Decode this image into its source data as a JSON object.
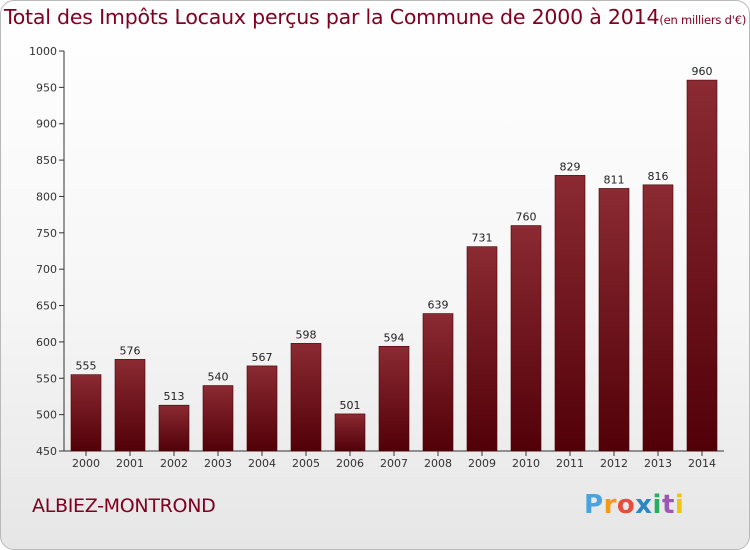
{
  "title": "Total des Impôts Locaux perçus par la Commune de 2000 à 2014",
  "title_unit": "(en milliers d'€)",
  "commune": "ALBIEZ-MONTROND",
  "logo": {
    "letters": [
      "P",
      "r",
      "o",
      "x",
      "i",
      "t",
      "i"
    ],
    "colors": [
      "#4aa3df",
      "#f39c12",
      "#e74c3c",
      "#2e86c1",
      "#27ae60",
      "#9b59b6",
      "#f1c40f"
    ]
  },
  "chart_data": {
    "type": "bar",
    "title": "Total des Impôts Locaux perçus par la Commune de 2000 à 2014 (en milliers d'€)",
    "xlabel": "",
    "ylabel": "",
    "categories": [
      "2000",
      "2001",
      "2002",
      "2003",
      "2004",
      "2005",
      "2006",
      "2007",
      "2008",
      "2009",
      "2010",
      "2011",
      "2012",
      "2013",
      "2014"
    ],
    "values": [
      555,
      576,
      513,
      540,
      567,
      598,
      501,
      594,
      639,
      731,
      760,
      829,
      811,
      816,
      960
    ],
    "ylim": [
      450,
      1000
    ],
    "yticks": [
      450,
      500,
      550,
      600,
      650,
      700,
      750,
      800,
      850,
      900,
      950,
      1000
    ],
    "grid": false,
    "colors": {
      "bar_light": "#8b2a32",
      "bar_dark": "#520008",
      "text": "#800020"
    }
  }
}
